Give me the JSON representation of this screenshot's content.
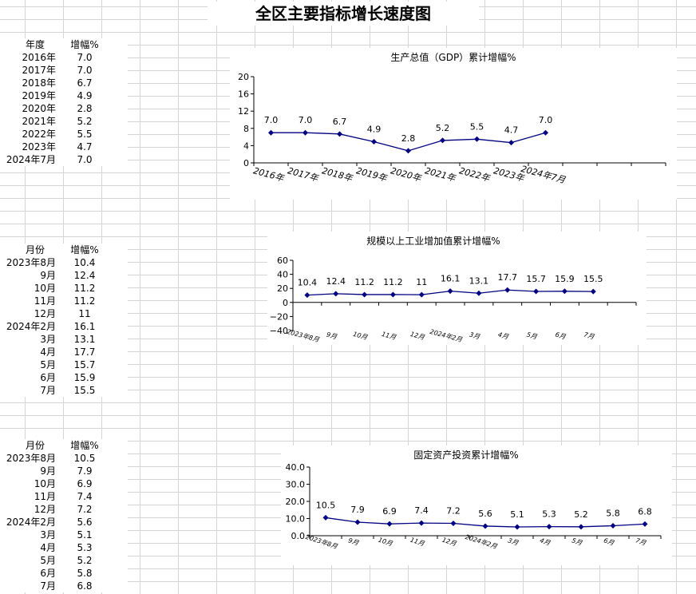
{
  "page_title": "全区主要指标增长速度图",
  "tables": [
    {
      "col1_header": "年度",
      "col2_header": "增幅%",
      "rows": [
        {
          "label": "2016年",
          "value": "7.0"
        },
        {
          "label": "2017年",
          "value": "7.0"
        },
        {
          "label": "2018年",
          "value": "6.7"
        },
        {
          "label": "2019年",
          "value": "4.9"
        },
        {
          "label": "2020年",
          "value": "2.8"
        },
        {
          "label": "2021年",
          "value": "5.2"
        },
        {
          "label": "2022年",
          "value": "5.5"
        },
        {
          "label": "2023年",
          "value": "4.7"
        },
        {
          "label": "2024年7月",
          "value": "7.0"
        }
      ]
    },
    {
      "col1_header": "月份",
      "col2_header": "增幅%",
      "rows": [
        {
          "label": "2023年8月",
          "value": "10.4"
        },
        {
          "label": "9月",
          "value": "12.4"
        },
        {
          "label": "10月",
          "value": "11.2"
        },
        {
          "label": "11月",
          "value": "11.2"
        },
        {
          "label": "12月",
          "value": "11"
        },
        {
          "label": "2024年2月",
          "value": "16.1"
        },
        {
          "label": "3月",
          "value": "13.1"
        },
        {
          "label": "4月",
          "value": "17.7"
        },
        {
          "label": "5月",
          "value": "15.7"
        },
        {
          "label": "6月",
          "value": "15.9"
        },
        {
          "label": "7月",
          "value": "15.5"
        }
      ]
    },
    {
      "col1_header": "月份",
      "col2_header": "增幅%",
      "rows": [
        {
          "label": "2023年8月",
          "value": "10.5"
        },
        {
          "label": "9月",
          "value": "7.9"
        },
        {
          "label": "10月",
          "value": "6.9"
        },
        {
          "label": "11月",
          "value": "7.4"
        },
        {
          "label": "12月",
          "value": "7.2"
        },
        {
          "label": "2024年2月",
          "value": "5.6"
        },
        {
          "label": "3月",
          "value": "5.1"
        },
        {
          "label": "4月",
          "value": "5.3"
        },
        {
          "label": "5月",
          "value": "5.2"
        },
        {
          "label": "6月",
          "value": "5.8"
        },
        {
          "label": "7月",
          "value": "6.8"
        }
      ]
    }
  ],
  "chart_data": [
    {
      "type": "line",
      "title": "生产总值（GDP）累计增幅%",
      "categories": [
        "2016年",
        "2017年",
        "2018年",
        "2019年",
        "2020年",
        "2021年",
        "2022年",
        "2023年",
        "2024年7月"
      ],
      "values": [
        7.0,
        7.0,
        6.7,
        4.9,
        2.8,
        5.2,
        5.5,
        4.7,
        7.0
      ],
      "data_labels": [
        "7.0",
        "7.0",
        "6.7",
        "4.9",
        "2.8",
        "5.2",
        "5.5",
        "4.7",
        "7.0"
      ],
      "ylim": [
        0,
        20
      ],
      "yticks": [
        0,
        4,
        8,
        12,
        16,
        20
      ],
      "ytick_labels": [
        "0",
        "4",
        "8",
        "12",
        "16",
        "20"
      ],
      "grid": false,
      "legend": "none",
      "line_color": "#000080"
    },
    {
      "type": "line",
      "title": "规模以上工业增加值累计增幅%",
      "categories": [
        "2023年8月",
        "9月",
        "10月",
        "11月",
        "12月",
        "2024年2月",
        "3月",
        "4月",
        "5月",
        "6月",
        "7月"
      ],
      "values": [
        10.4,
        12.4,
        11.2,
        11.2,
        11,
        16.1,
        13.1,
        17.7,
        15.7,
        15.9,
        15.5
      ],
      "data_labels": [
        "10.4",
        "12.4",
        "11.2",
        "11.2",
        "11",
        "16.1",
        "13.1",
        "17.7",
        "15.7",
        "15.9",
        "15.5"
      ],
      "ylim": [
        -40,
        60
      ],
      "yticks": [
        -40,
        -20,
        0,
        20,
        40,
        60
      ],
      "ytick_labels": [
        "−40",
        "−20",
        "0",
        "20",
        "40",
        "60"
      ],
      "grid": false,
      "legend": "none",
      "line_color": "#000080"
    },
    {
      "type": "line",
      "title": "固定资产投资累计增幅%",
      "categories": [
        "2023年8月",
        "9月",
        "10月",
        "11月",
        "12月",
        "2024年2月",
        "3月",
        "4月",
        "5月",
        "6月",
        "7月"
      ],
      "values": [
        10.5,
        7.9,
        6.9,
        7.4,
        7.2,
        5.6,
        5.1,
        5.3,
        5.2,
        5.8,
        6.8
      ],
      "data_labels": [
        "10.5",
        "7.9",
        "6.9",
        "7.4",
        "7.2",
        "5.6",
        "5.1",
        "5.3",
        "5.2",
        "5.8",
        "6.8"
      ],
      "ylim": [
        0,
        40
      ],
      "yticks": [
        0,
        10,
        20,
        30,
        40
      ],
      "ytick_labels": [
        "0.0",
        "10.0",
        "20.0",
        "30.0",
        "40.0"
      ],
      "grid": false,
      "legend": "none",
      "line_color": "#000080"
    }
  ]
}
